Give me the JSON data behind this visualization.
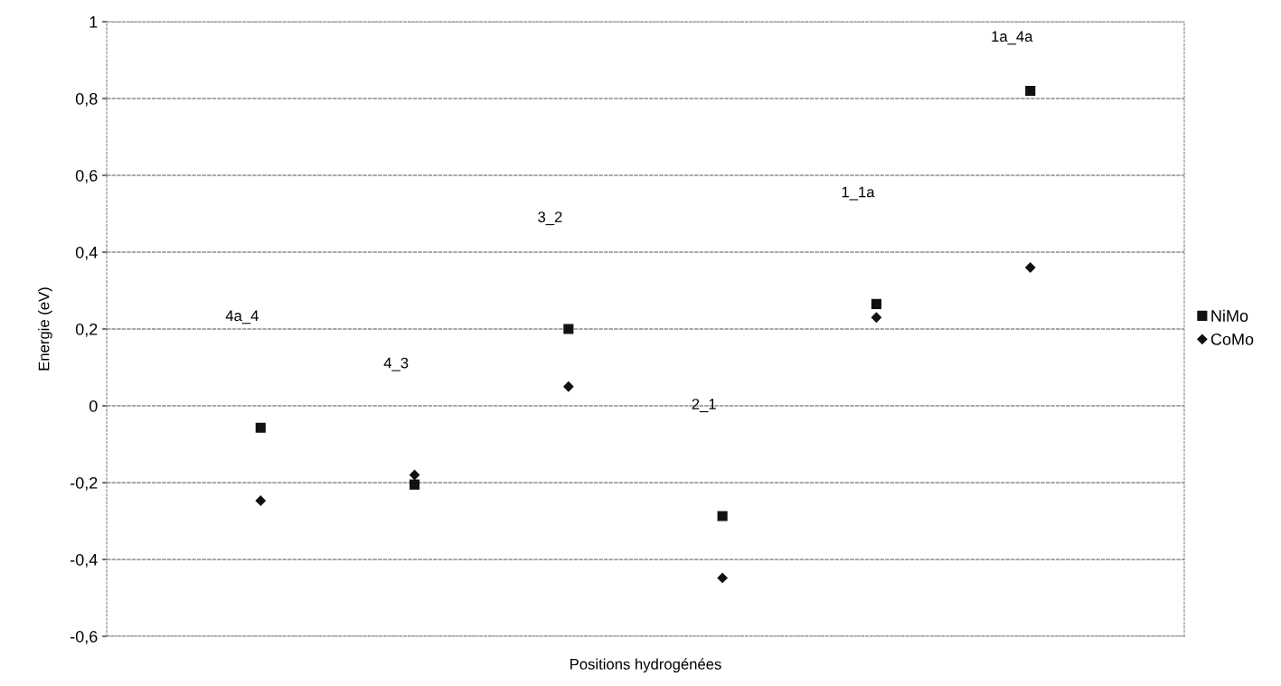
{
  "chart_data": {
    "type": "scatter",
    "xlabel": "Positions hydrogénées",
    "ylabel": "Energie (eV)",
    "categories": [
      null,
      null,
      null,
      null,
      null,
      null
    ],
    "series": [
      {
        "name": "NiMo",
        "color": "#111111",
        "marker": "square",
        "values": [
          -0.057,
          -0.205,
          0.2,
          -0.287,
          0.265,
          0.82
        ]
      },
      {
        "name": "CoMo",
        "color": "#111111",
        "marker": "diamond",
        "values": [
          -0.247,
          -0.18,
          0.05,
          -0.448,
          0.23,
          0.36
        ]
      }
    ],
    "annotations": [
      "4a_4",
      "4_3",
      "3_2",
      "2_1",
      "1_1a",
      "1a_4a"
    ],
    "ylim": [
      -0.6,
      1
    ],
    "yticks": [
      {
        "value": -0.6,
        "label": "-0,6"
      },
      {
        "value": -0.4,
        "label": "-0,4"
      },
      {
        "value": -0.2,
        "label": "-0,2"
      },
      0,
      {
        "value": 0.2,
        "label": "0,2"
      },
      {
        "value": 0.4,
        "label": "0,4"
      },
      {
        "value": 0.6,
        "label": "0,6"
      },
      {
        "value": 0.8,
        "label": "0,8"
      },
      1
    ],
    "grid": "y",
    "legend": "right"
  }
}
